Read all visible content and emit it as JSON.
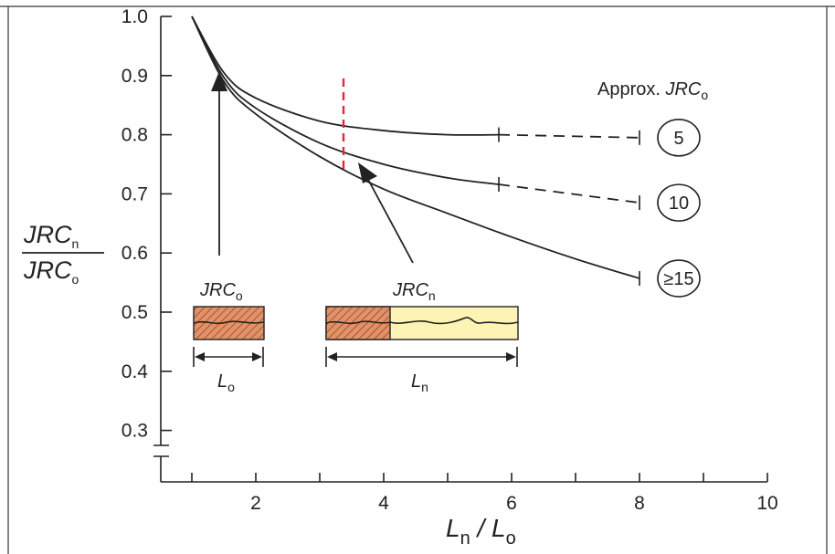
{
  "chart_data": {
    "type": "line",
    "xlim": [
      0,
      10
    ],
    "ylim": [
      0.25,
      1.0
    ],
    "x_ticks": [
      "2",
      "4",
      "6",
      "8",
      "10"
    ],
    "y_ticks": [
      "1.0",
      "0.9",
      "0.8",
      "0.7",
      "0.6",
      "0.5",
      "0.4",
      "0.3"
    ],
    "xlabel": {
      "main": "L",
      "sub1": "n",
      "sep": " / L",
      "sub2": "o"
    },
    "ylabel": {
      "num_main": "JRC",
      "num_sub": "n",
      "den_main": "JRC",
      "den_sub": "o"
    },
    "legend_title": {
      "prefix": "Approx. ",
      "main": "JRC",
      "sub": "o"
    },
    "series": [
      {
        "name": "5",
        "x": [
          1.0,
          1.5,
          2.0,
          3.0,
          4.0,
          5.0,
          5.8
        ],
        "y": [
          1.0,
          0.905,
          0.862,
          0.823,
          0.807,
          0.8,
          0.8
        ],
        "dashed_x": [
          5.8,
          8.0
        ],
        "dashed_y": [
          0.8,
          0.795
        ]
      },
      {
        "name": "10",
        "x": [
          1.0,
          1.5,
          2.0,
          3.0,
          4.0,
          5.0,
          5.8
        ],
        "y": [
          1.0,
          0.897,
          0.845,
          0.786,
          0.75,
          0.727,
          0.716
        ],
        "dashed_x": [
          5.8,
          8.0
        ],
        "dashed_y": [
          0.716,
          0.685
        ]
      },
      {
        "name": "≥15",
        "x": [
          1.0,
          1.5,
          2.0,
          3.0,
          4.0,
          5.0,
          6.0,
          7.0,
          8.0
        ],
        "y": [
          1.0,
          0.89,
          0.835,
          0.763,
          0.708,
          0.667,
          0.627,
          0.59,
          0.557
        ]
      }
    ],
    "annotations": {
      "jrc_o": {
        "main": "JRC",
        "sub": "o"
      },
      "jrc_n": {
        "main": "JRC",
        "sub": "n"
      },
      "l_o": {
        "main": "L",
        "sub": "o"
      },
      "l_n": {
        "main": "L",
        "sub": "n"
      }
    },
    "colors": {
      "curve": "#222222",
      "red_marker": "#e0283c",
      "hatch_fill": "#e29266",
      "sample_fill": "#fdf3b5"
    }
  }
}
